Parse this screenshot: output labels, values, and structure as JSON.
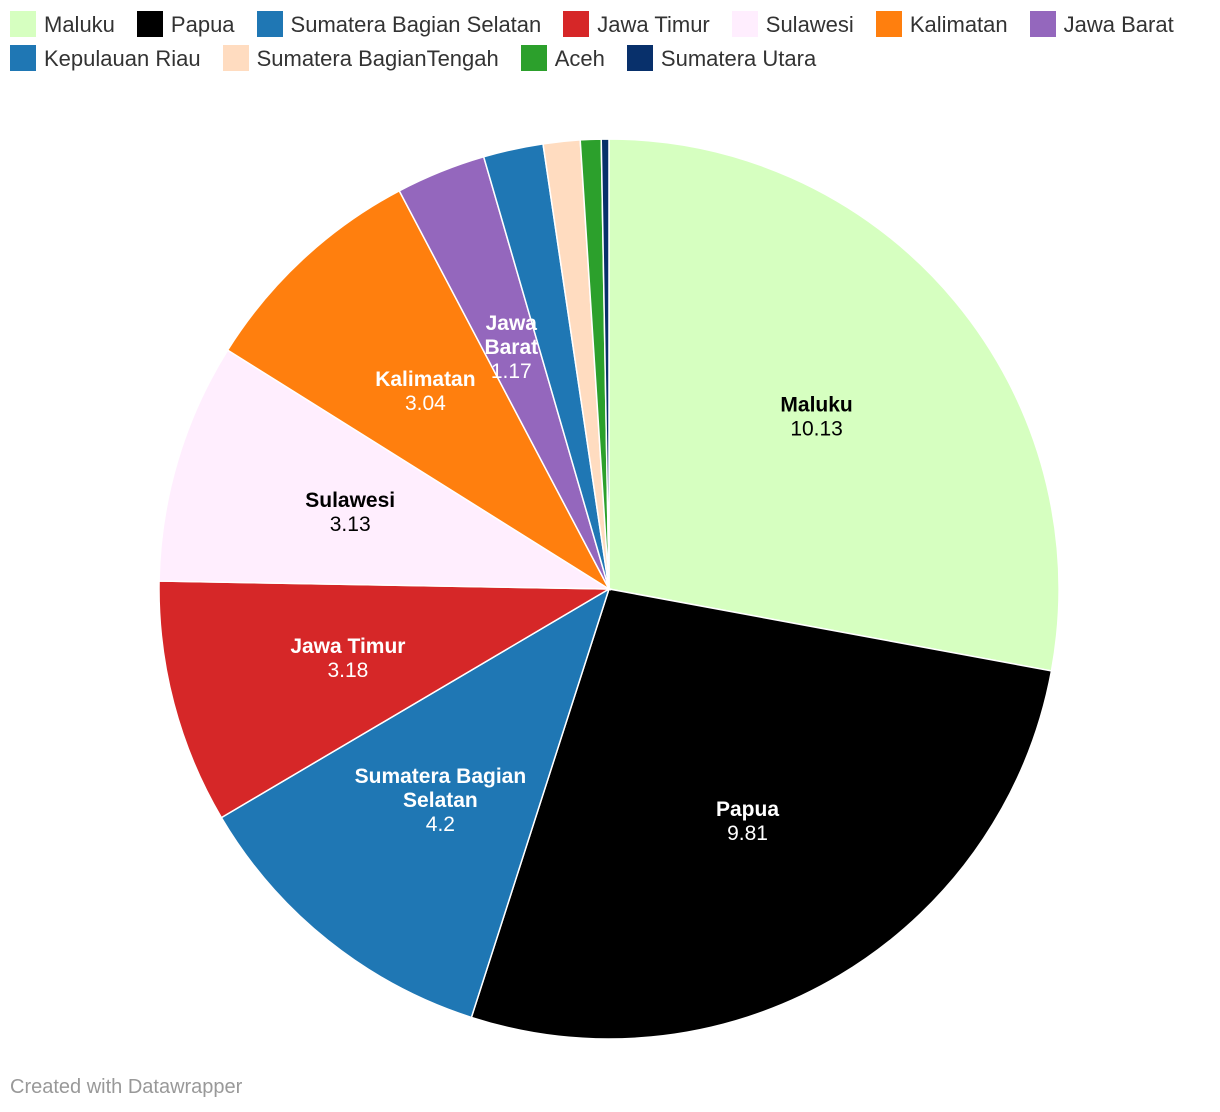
{
  "chart_data": {
    "type": "pie",
    "slices": [
      {
        "name": "Maluku",
        "value": 10.13,
        "color": "#d6ffc0",
        "label_color": "#000000",
        "show_label": true
      },
      {
        "name": "Papua",
        "value": 9.81,
        "color": "#000000",
        "label_color": "#ffffff",
        "show_label": true
      },
      {
        "name": "Sumatera Bagian Selatan",
        "value": 4.2,
        "color": "#1f77b4",
        "label_color": "#ffffff",
        "show_label": true
      },
      {
        "name": "Jawa Timur",
        "value": 3.18,
        "color": "#d62728",
        "label_color": "#ffffff",
        "show_label": true
      },
      {
        "name": "Sulawesi",
        "value": 3.13,
        "color": "#ffeefe",
        "label_color": "#000000",
        "show_label": true
      },
      {
        "name": "Kalimatan",
        "value": 3.04,
        "color": "#ff7f0e",
        "label_color": "#ffffff",
        "show_label": true
      },
      {
        "name": "Jawa Barat",
        "value": 1.17,
        "color": "#9467bd",
        "label_color": "#ffffff",
        "show_label": true
      },
      {
        "name": "Kepulauan Riau",
        "value": 0.78,
        "color": "#1f77b4",
        "label_color": "#ffffff",
        "show_label": false
      },
      {
        "name": "Sumatera BagianTengah",
        "value": 0.48,
        "color": "#ffdcc0",
        "label_color": "#000000",
        "show_label": false
      },
      {
        "name": "Aceh",
        "value": 0.27,
        "color": "#2ca02c",
        "label_color": "#ffffff",
        "show_label": false
      },
      {
        "name": "Sumatera Utara",
        "value": 0.1,
        "color": "#08306b",
        "label_color": "#ffffff",
        "show_label": false
      }
    ],
    "legend_position": "top",
    "sort": "descending-clockwise-from-top"
  },
  "credit": "Created with Datawrapper"
}
